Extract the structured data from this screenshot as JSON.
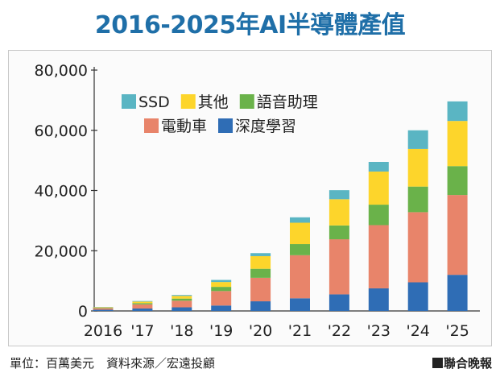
{
  "title": "2016-2025年AI半導體產值",
  "footer": {
    "unit_source": "單位：百萬美元　資料來源／宏遠投顧",
    "brand": "聯合晚報"
  },
  "chart_data": {
    "type": "bar",
    "stacked": true,
    "title": "2016-2025年AI半導體產值",
    "xlabel": "",
    "ylabel": "",
    "ylim": [
      0,
      80000
    ],
    "yticks": [
      0,
      20000,
      40000,
      60000,
      80000
    ],
    "ytick_labels": [
      "0",
      "20,000",
      "40,000",
      "60,000",
      "80,000"
    ],
    "grid": false,
    "legend_position": "top-center",
    "categories": [
      "2016",
      "'17",
      "'18",
      "'19",
      "'20",
      "'21",
      "'22",
      "'23",
      "'24",
      "'25"
    ],
    "series": [
      {
        "name": "深度學習",
        "color": "#2f6db5",
        "values": [
          400,
          800,
          1200,
          1800,
          3200,
          4200,
          5500,
          7500,
          9500,
          12000
        ]
      },
      {
        "name": "電動車",
        "color": "#e8846a",
        "values": [
          500,
          1400,
          2200,
          4800,
          7800,
          14300,
          18300,
          21000,
          23300,
          26500
        ]
      },
      {
        "name": "語音助理",
        "color": "#6ab24a",
        "values": [
          150,
          400,
          700,
          1400,
          3000,
          3700,
          4600,
          6800,
          8500,
          9600
        ]
      },
      {
        "name": "其他",
        "color": "#fdd52b",
        "values": [
          150,
          500,
          900,
          1600,
          4200,
          7100,
          8700,
          11000,
          12500,
          15000
        ]
      },
      {
        "name": "SSD",
        "color": "#5ab5c3",
        "values": [
          100,
          200,
          300,
          700,
          1000,
          1800,
          3000,
          3200,
          6200,
          6500
        ]
      }
    ],
    "legend_rows": [
      [
        "SSD",
        "其他",
        "語音助理"
      ],
      [
        "電動車",
        "深度學習"
      ]
    ]
  }
}
